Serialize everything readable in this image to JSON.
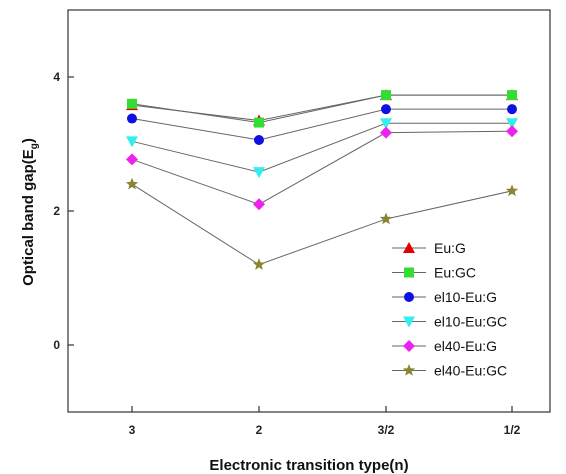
{
  "chart_data": {
    "type": "line",
    "categories": [
      "3",
      "2",
      "3/2",
      "1/2"
    ],
    "xlabel": "Electronic transition type(n)",
    "ylabel_main": "Optical band gap(E",
    "ylabel_sub": "g",
    "ylabel_close": ")",
    "ylim": [
      -1,
      5
    ],
    "yticks": [
      "0",
      "2",
      "4"
    ],
    "ytick_values": [
      0,
      2,
      4
    ],
    "grid": false,
    "legend_position": "bottom-right",
    "series": [
      {
        "name": "Eu:G",
        "color": "#e00000",
        "marker": "triangle",
        "values": [
          3.58,
          3.35,
          3.73,
          3.73
        ]
      },
      {
        "name": "Eu:GC",
        "color": "#33dd33",
        "marker": "square",
        "values": [
          3.6,
          3.32,
          3.73,
          3.73
        ]
      },
      {
        "name": "el10-Eu:G",
        "color": "#1010e0",
        "marker": "circle",
        "values": [
          3.38,
          3.06,
          3.52,
          3.52
        ]
      },
      {
        "name": "el10-Eu:GC",
        "color": "#33eeee",
        "marker": "triangle-down",
        "values": [
          3.04,
          2.58,
          3.31,
          3.31
        ]
      },
      {
        "name": "el40-Eu:G",
        "color": "#ee22ee",
        "marker": "diamond",
        "values": [
          2.77,
          2.1,
          3.17,
          3.19
        ]
      },
      {
        "name": "el40-Eu:GC",
        "color": "#8b8530",
        "marker": "star",
        "values": [
          2.4,
          1.2,
          1.88,
          2.3
        ]
      }
    ]
  }
}
